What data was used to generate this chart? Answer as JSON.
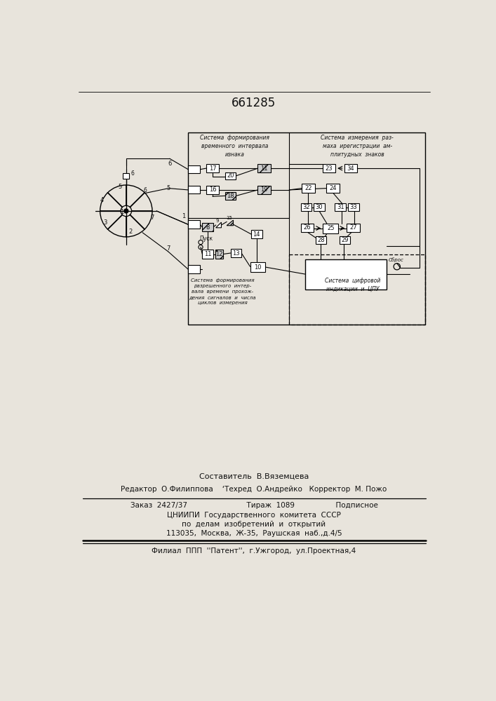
{
  "title": "661285",
  "bg": "#e8e4dc",
  "tc": "#111111",
  "bottom": {
    "l1": "Составитель  В.Вяземцева",
    "l2": "Редактор  О.Филиппова    ‘Техред  О.Андрейко   Корректор  М. Пожо",
    "l3": "Заказ  2427/37                          Тираж  1089                  Подписное",
    "l4": "ЦНИИПИ  Государственного  комитета  СССР",
    "l5": "по  делам  изобретений  и  открытий",
    "l6": "113035,  Москва,  Ж-35,  Раушская  наб.,д.4/5",
    "l7": "Филиал  ППП  ''Патент'',  г.Ужгород,  ул.Проектная,4"
  },
  "sys_labels": {
    "s1": "Система  формирования\nвременного  интервала\nизнака",
    "s2": "Система  измерения  раз-\nмаха  ирегистрации  ам-\nплитудных  знаков",
    "s3": "Система  формирования\nразрешенного  интер-\nвала  времени  прохож-\nдения  сигналов  и  числа\nциклов  измерения",
    "s4": "Система  цифровой\nиндикации  и  ЦПУ"
  }
}
